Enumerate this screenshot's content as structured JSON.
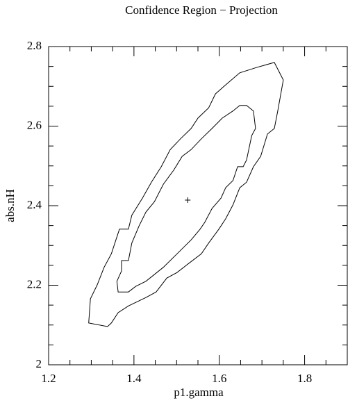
{
  "chart_data": {
    "type": "contour",
    "title": "Confidence Region − Projection",
    "xlabel": "p1.gamma",
    "ylabel": "abs.nH",
    "xlim": [
      1.2,
      1.9
    ],
    "ylim": [
      2,
      2.8
    ],
    "xticks": [
      1.2,
      1.4,
      1.6,
      1.8
    ],
    "yticks": [
      2,
      2.2,
      2.4,
      2.6,
      2.8
    ],
    "xminorticks": [
      1.25,
      1.3,
      1.35,
      1.45,
      1.5,
      1.55,
      1.65,
      1.7,
      1.75,
      1.85
    ],
    "yminorticks": [
      2.05,
      2.1,
      2.15,
      2.25,
      2.3,
      2.35,
      2.45,
      2.5,
      2.55,
      2.65,
      2.7,
      2.75
    ],
    "color": "#000000",
    "contours": [
      {
        "x": [
          1.294,
          1.298,
          1.314,
          1.33,
          1.347,
          1.366,
          1.387,
          1.395,
          1.42,
          1.441,
          1.464,
          1.485,
          1.509,
          1.534,
          1.55,
          1.575,
          1.591,
          1.61,
          1.648,
          1.689,
          1.729,
          1.75,
          1.737,
          1.729,
          1.713,
          1.697,
          1.68,
          1.664,
          1.648,
          1.632,
          1.615,
          1.599,
          1.575,
          1.558,
          1.526,
          1.501,
          1.477,
          1.452,
          1.428,
          1.387,
          1.363,
          1.347,
          1.338
        ],
        "y": [
          2.105,
          2.166,
          2.201,
          2.245,
          2.279,
          2.341,
          2.341,
          2.376,
          2.419,
          2.459,
          2.498,
          2.541,
          2.568,
          2.594,
          2.62,
          2.646,
          2.681,
          2.699,
          2.734,
          2.748,
          2.76,
          2.716,
          2.638,
          2.594,
          2.58,
          2.524,
          2.498,
          2.459,
          2.445,
          2.402,
          2.367,
          2.341,
          2.306,
          2.279,
          2.253,
          2.232,
          2.218,
          2.183,
          2.169,
          2.148,
          2.131,
          2.105,
          2.096
        ]
      },
      {
        "x": [
          1.363,
          1.36,
          1.371,
          1.371,
          1.387,
          1.395,
          1.412,
          1.428,
          1.448,
          1.469,
          1.493,
          1.513,
          1.534,
          1.558,
          1.583,
          1.607,
          1.632,
          1.648,
          1.664,
          1.68,
          1.685,
          1.676,
          1.664,
          1.656,
          1.643,
          1.632,
          1.615,
          1.604,
          1.583,
          1.566,
          1.555,
          1.534,
          1.501,
          1.469,
          1.428,
          1.404,
          1.387
        ],
        "y": [
          2.183,
          2.21,
          2.236,
          2.262,
          2.262,
          2.306,
          2.349,
          2.384,
          2.41,
          2.454,
          2.489,
          2.524,
          2.541,
          2.568,
          2.594,
          2.62,
          2.638,
          2.652,
          2.652,
          2.638,
          2.594,
          2.576,
          2.515,
          2.498,
          2.498,
          2.463,
          2.445,
          2.419,
          2.393,
          2.358,
          2.341,
          2.314,
          2.279,
          2.245,
          2.21,
          2.197,
          2.183
        ]
      }
    ],
    "best_fit": {
      "x": 1.526,
      "y": 2.414
    }
  }
}
